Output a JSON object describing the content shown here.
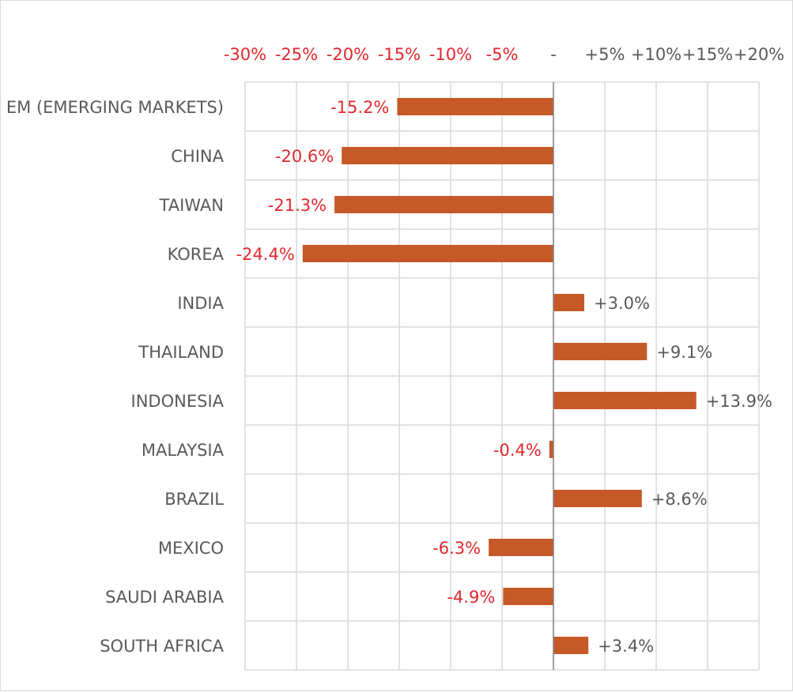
{
  "chart_data": {
    "type": "bar",
    "orientation": "horizontal",
    "title": "",
    "xlabel": "",
    "ylabel": "",
    "xlim": [
      -30,
      20
    ],
    "x_tick_values": [
      -30,
      -25,
      -20,
      -15,
      -10,
      -5,
      0,
      5,
      10,
      15,
      20
    ],
    "x_tick_labels": [
      "-30%",
      "-25%",
      "-20%",
      "-15%",
      "-10%",
      "-5%",
      "-",
      "+5%",
      "+10%",
      "+15%",
      "+20%"
    ],
    "categories": [
      "EM (EMERGING MARKETS)",
      "CHINA",
      "TAIWAN",
      "KOREA",
      "INDIA",
      "THAILAND",
      "INDONESIA",
      "MALAYSIA",
      "BRAZIL",
      "MEXICO",
      "SAUDI ARABIA",
      "SOUTH AFRICA"
    ],
    "values": [
      -15.2,
      -20.6,
      -21.3,
      -24.4,
      3.0,
      9.1,
      13.9,
      -0.4,
      8.6,
      -6.3,
      -4.9,
      3.4
    ],
    "data_labels": [
      "-15.2%",
      "-20.6%",
      "-21.3%",
      "-24.4%",
      "+3.0%",
      "+9.1%",
      "+13.9%",
      "-0.4%",
      "+8.6%",
      "-6.3%",
      "-4.9%",
      "+3.4%"
    ],
    "grid": true,
    "axis_position": "top",
    "colors": {
      "bar": "#c55a28",
      "negative_text": "#e0282e",
      "positive_text": "#595959",
      "category_text": "#595959",
      "grid": "#d9d9d9",
      "zero_line": "#7f7f7f"
    }
  }
}
